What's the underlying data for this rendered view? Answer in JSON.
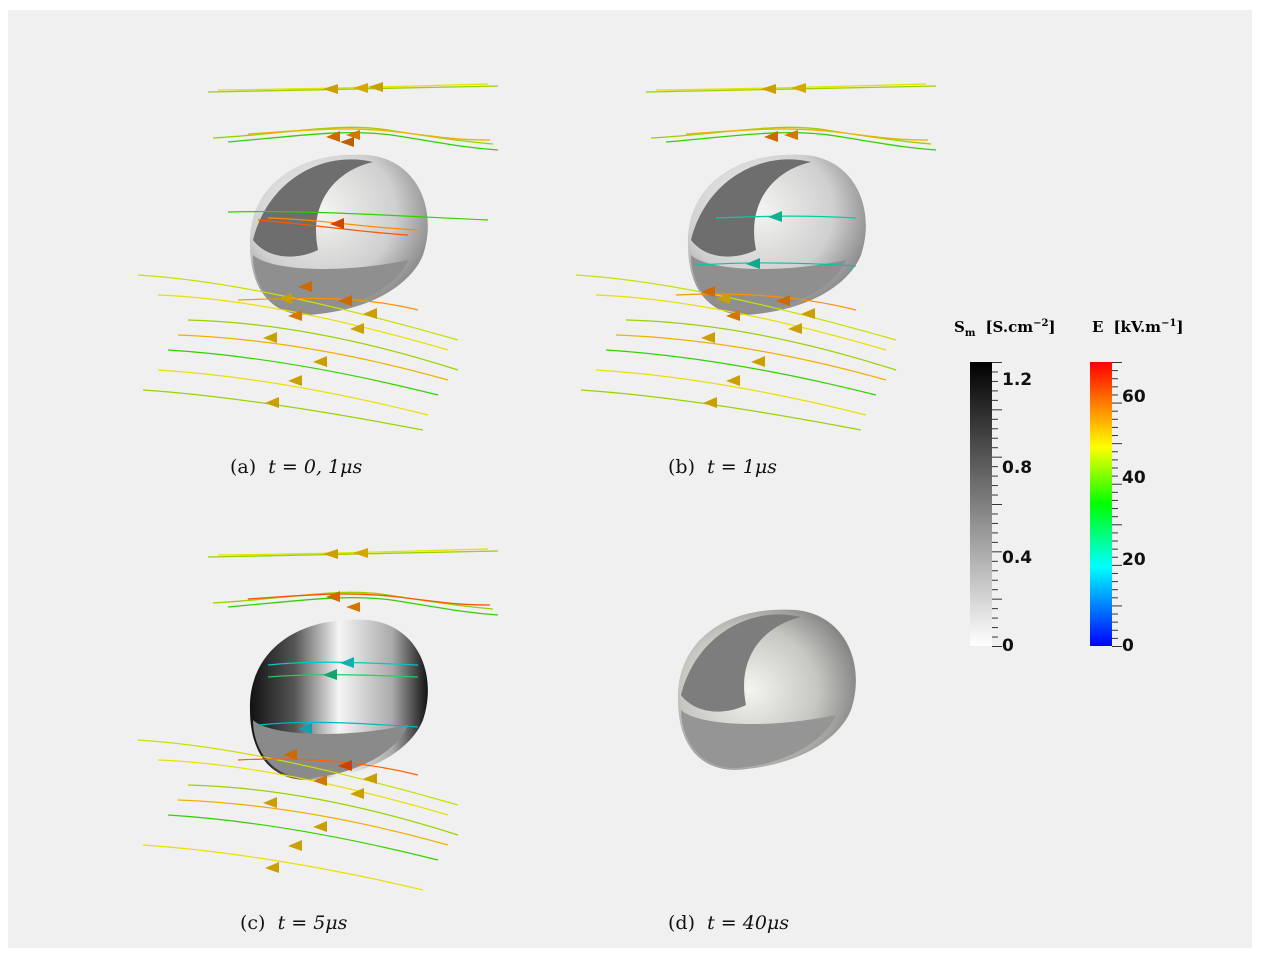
{
  "panels": [
    {
      "id": "a",
      "caption_prefix": "(a)",
      "caption_expr": "t = 0, 1μs",
      "vesicle_state": "low conductance, E field passes around"
    },
    {
      "id": "b",
      "caption_prefix": "(b)",
      "caption_expr": "t = 1μs",
      "vesicle_state": "field starts penetrating"
    },
    {
      "id": "c",
      "caption_prefix": "(c)",
      "caption_expr": "t = 5μs",
      "vesicle_state": "high conductance poles"
    },
    {
      "id": "d",
      "caption_prefix": "(d)",
      "caption_expr": "t = 40μs",
      "vesicle_state": "no field lines"
    }
  ],
  "colorbars": {
    "sm": {
      "title_main": "S",
      "title_sub": "m",
      "title_unit": "[S.cm",
      "title_exp": "−2",
      "title_close": "]",
      "ticks": [
        "1.2",
        "0.8",
        "0.4",
        "0"
      ],
      "tick_values": [
        1.2,
        0.8,
        0.4,
        0
      ],
      "range": [
        0,
        1.3
      ],
      "colors": [
        "#000000",
        "#ffffff"
      ]
    },
    "e": {
      "title_main": "E",
      "title_unit": "[kV.m",
      "title_exp": "−1",
      "title_close": "]",
      "ticks": [
        "60",
        "40",
        "20",
        "0"
      ],
      "tick_values": [
        60,
        40,
        20,
        0
      ],
      "range": [
        0,
        70
      ],
      "colors": [
        "#ff0000",
        "#ffff00",
        "#00ff00",
        "#00ffff",
        "#0000ff"
      ]
    }
  }
}
